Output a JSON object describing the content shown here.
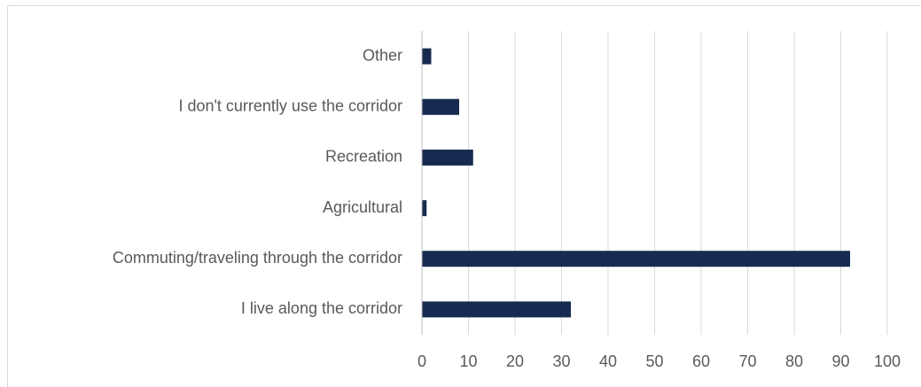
{
  "chart_data": {
    "type": "bar",
    "orientation": "horizontal",
    "categories": [
      "Other",
      "I don't currently use the corridor",
      "Recreation",
      "Agricultural",
      "Commuting/traveling through the corridor",
      "I live along the corridor"
    ],
    "values": [
      2,
      8,
      11,
      1,
      92,
      32
    ],
    "color": "#172b50",
    "xlim": [
      0,
      100
    ],
    "xticks": [
      0,
      10,
      20,
      30,
      40,
      50,
      60,
      70,
      80,
      90,
      100
    ],
    "grid": true
  }
}
